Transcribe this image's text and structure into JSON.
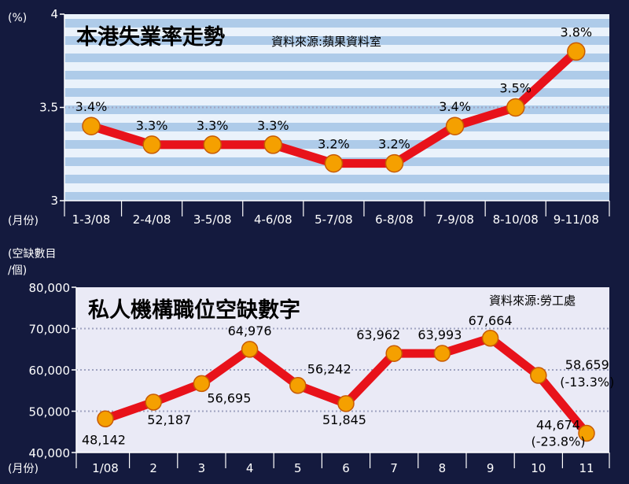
{
  "chart_data": [
    {
      "type": "line",
      "title": "本港失業率走勢",
      "source": "資料來源:蘋果資料室",
      "ylabel": "(%)",
      "xlabel": "(月份)",
      "categories": [
        "1-3/08",
        "2-4/08",
        "3-5/08",
        "4-6/08",
        "5-7/08",
        "6-8/08",
        "7-9/08",
        "8-10/08",
        "9-11/08"
      ],
      "values": [
        3.4,
        3.3,
        3.3,
        3.3,
        3.2,
        3.2,
        3.4,
        3.5,
        3.8
      ],
      "data_labels": [
        "3.4%",
        "3.3%",
        "3.3%",
        "3.3%",
        "3.2%",
        "3.2%",
        "3.4%",
        "3.5%",
        "3.8%"
      ],
      "yticks": [
        4,
        3.5,
        3
      ],
      "ytick_labels": [
        "4",
        "3.5",
        "3"
      ],
      "ylim": [
        3,
        4
      ],
      "grid": true
    },
    {
      "type": "line",
      "title": "私人機構職位空缺數字",
      "source": "資料來源:勞工處",
      "ylabel_lines": [
        "(空缺數目",
        "/個)"
      ],
      "xlabel": "(月份)",
      "categories": [
        "1/08",
        "2",
        "3",
        "4",
        "5",
        "6",
        "7",
        "8",
        "9",
        "10",
        "11"
      ],
      "values": [
        48142,
        52187,
        56695,
        64976,
        56242,
        51845,
        63962,
        63993,
        67664,
        58659,
        44674
      ],
      "data_labels": [
        "48,142",
        "52,187",
        "56,695",
        "64,976",
        "56,242",
        "51,845",
        "63,962",
        "63,993",
        "67,664",
        "58,659",
        "44,674"
      ],
      "annotations": [
        {
          "index": 9,
          "text": "(-13.3%)"
        },
        {
          "index": 10,
          "text": "(-23.8%)"
        }
      ],
      "yticks": [
        80000,
        70000,
        60000,
        50000,
        40000
      ],
      "ytick_labels": [
        "80,000",
        "70,000",
        "60,000",
        "50,000",
        "40,000"
      ],
      "ylim": [
        40000,
        80000
      ],
      "grid": true
    }
  ],
  "colors": {
    "background": "#141a3e",
    "panel_top_stripe_light": "#eaf2fb",
    "panel_top_stripe_dark": "#aecbe9",
    "panel_bottom": "#eaeaf6",
    "line": "#e8121a",
    "marker": "#f5a000",
    "grid": "#9fa3c0"
  }
}
